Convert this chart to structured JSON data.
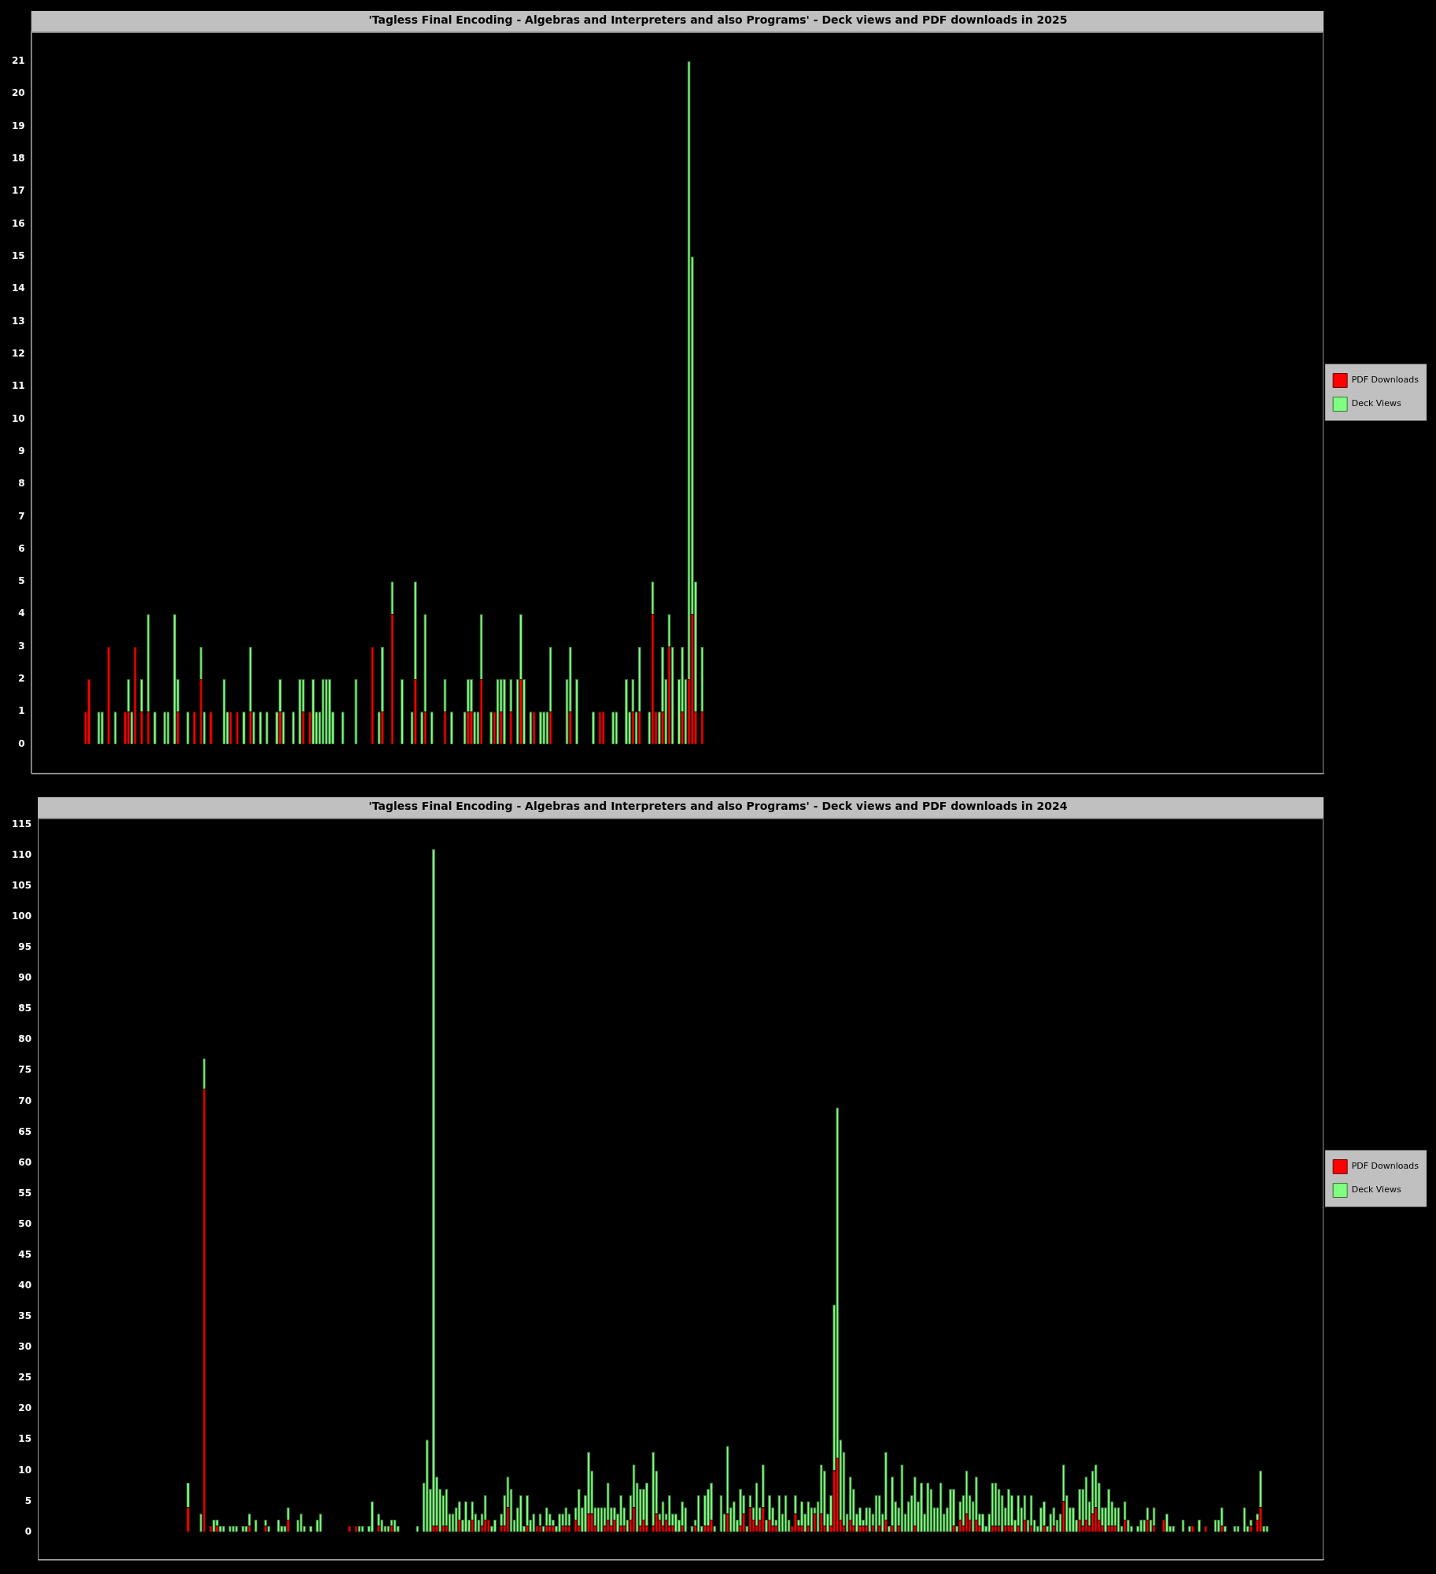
{
  "chart_data": [
    {
      "type": "bar",
      "title": "'Tagless Final Encoding - Algebras and Interpreters and also Programs' - Deck views and PDF downloads in 2025",
      "stacked": true,
      "legend": "right",
      "grid": false,
      "tick_labels": "y",
      "ylim": [
        -0.9,
        21.9
      ],
      "yticks": [
        0,
        1,
        2,
        3,
        4,
        5,
        6,
        7,
        8,
        9,
        10,
        11,
        12,
        13,
        14,
        15,
        16,
        17,
        18,
        19,
        20,
        21
      ],
      "categories": [
        null,
        null,
        null,
        null,
        null,
        null,
        null,
        null,
        null,
        null,
        null,
        null,
        null,
        null,
        null,
        null,
        null,
        null,
        null,
        null,
        null,
        null,
        null,
        null,
        null,
        null,
        null,
        null,
        null,
        null,
        null,
        null,
        null,
        null,
        null,
        null,
        null,
        null,
        null,
        null,
        null,
        null,
        null,
        null,
        null,
        null,
        null,
        null,
        null,
        null,
        null,
        null,
        null,
        null,
        null,
        null,
        null,
        null,
        null,
        null,
        null,
        null,
        null,
        null,
        null,
        null,
        null,
        null,
        null,
        null,
        null,
        null,
        null,
        null,
        null,
        null,
        null,
        null,
        null,
        null,
        null,
        null,
        null,
        null,
        null,
        null,
        null,
        null,
        null,
        null,
        null,
        null,
        null,
        null,
        null,
        null,
        null,
        null,
        null,
        null,
        null,
        null,
        null,
        null,
        null,
        null,
        null,
        null,
        null,
        null,
        null,
        null,
        null,
        null,
        null,
        null,
        null,
        null,
        null,
        null,
        null,
        null,
        null,
        null,
        null,
        null,
        null,
        null,
        null,
        null,
        null,
        null,
        null,
        null,
        null,
        null,
        null,
        null,
        null,
        null,
        null,
        null,
        null,
        null,
        null,
        null,
        null,
        null,
        null,
        null,
        null,
        null,
        null,
        null,
        null,
        null,
        null,
        null,
        null,
        null,
        null,
        null,
        null,
        null,
        null,
        null,
        null,
        null,
        null,
        null,
        null,
        null,
        null,
        null,
        null,
        null,
        null,
        null,
        null,
        null,
        null,
        null,
        null,
        null,
        null,
        null,
        null,
        null,
        null,
        null,
        null,
        null,
        null,
        null,
        null,
        null,
        null,
        null,
        null,
        null,
        null,
        null,
        null,
        null,
        null,
        null,
        null,
        null,
        null,
        null,
        null,
        null,
        null,
        null,
        null,
        null,
        null,
        null,
        null,
        null,
        null,
        null,
        null,
        null,
        null,
        null,
        null,
        null,
        null,
        null,
        null,
        null,
        null,
        null,
        null,
        null,
        null,
        null,
        null,
        null,
        null,
        null,
        null,
        null,
        null,
        null,
        null,
        null,
        null,
        null,
        null,
        null,
        null,
        null,
        null,
        null,
        null,
        null,
        null,
        null,
        null,
        null,
        null,
        null,
        null,
        null,
        null,
        null,
        null,
        null,
        null,
        null,
        null,
        null,
        null,
        null,
        null,
        null,
        null,
        null,
        null,
        null,
        null,
        null,
        null,
        null,
        null,
        null,
        null,
        null,
        null,
        null,
        null,
        null,
        null,
        null,
        null,
        null,
        null,
        null,
        null,
        null,
        null,
        null,
        null,
        null,
        null,
        null,
        null,
        null,
        null,
        null,
        null,
        null,
        null,
        null,
        null,
        null,
        null,
        null,
        null,
        null,
        null,
        null,
        null,
        null,
        null,
        null,
        null,
        null,
        null,
        null,
        null,
        null,
        null,
        null,
        null,
        null,
        null,
        null,
        null,
        null,
        null,
        null,
        null,
        null,
        null,
        null,
        null,
        null,
        null,
        null,
        null,
        null,
        null,
        null,
        null,
        null,
        null,
        null,
        null,
        null,
        null,
        null,
        null,
        null,
        null,
        null,
        null,
        null,
        null,
        null,
        null,
        null,
        null,
        null,
        null,
        null,
        null,
        null,
        null,
        null,
        null,
        null,
        null,
        null,
        null,
        null,
        null,
        null,
        null,
        null
      ],
      "series": [
        {
          "name": "PDF Downloads",
          "color": "#ff0000",
          "values": [
            null,
            null,
            null,
            null,
            null,
            null,
            null,
            null,
            null,
            null,
            null,
            null,
            null,
            null,
            null,
            null,
            1,
            2,
            null,
            null,
            null,
            null,
            null,
            3,
            null,
            null,
            null,
            null,
            1,
            1,
            null,
            3,
            null,
            1,
            null,
            1,
            null,
            null,
            null,
            null,
            null,
            null,
            null,
            null,
            1,
            null,
            null,
            null,
            null,
            1,
            null,
            2,
            null,
            null,
            1,
            null,
            null,
            null,
            null,
            null,
            1,
            null,
            1,
            null,
            null,
            null,
            1,
            null,
            null,
            null,
            null,
            null,
            null,
            null,
            null,
            1,
            null,
            null,
            null,
            null,
            null,
            null,
            1,
            null,
            1,
            null,
            null,
            null,
            null,
            null,
            null,
            null,
            null,
            null,
            null,
            null,
            null,
            null,
            null,
            null,
            null,
            null,
            null,
            3,
            null,
            null,
            1,
            null,
            null,
            4,
            null,
            null,
            null,
            null,
            null,
            null,
            2,
            null,
            null,
            1,
            null,
            null,
            null,
            null,
            null,
            1,
            null,
            null,
            null,
            null,
            null,
            null,
            1,
            1,
            null,
            null,
            2,
            null,
            null,
            null,
            1,
            null,
            1,
            null,
            null,
            1,
            null,
            null,
            2,
            null,
            null,
            null,
            1,
            null,
            null,
            null,
            null,
            1,
            null,
            null,
            null,
            null,
            null,
            1,
            null,
            null,
            null,
            null,
            null,
            null,
            null,
            null,
            1,
            1,
            null,
            null,
            null,
            null,
            null,
            null,
            null,
            null,
            1,
            null,
            1,
            null,
            null,
            null,
            4,
            1,
            null,
            1,
            null,
            3,
            null,
            null,
            null,
            1,
            null,
            2,
            4,
            1,
            null,
            1,
            null,
            null,
            null,
            null,
            null,
            null,
            null,
            null,
            null,
            null,
            null,
            null,
            null,
            null,
            null,
            null,
            null,
            null,
            null,
            null,
            null,
            null,
            null,
            null,
            null,
            null,
            null,
            null,
            null,
            null,
            null,
            null,
            null,
            null,
            null,
            null,
            null,
            null,
            null,
            null,
            null,
            null,
            null,
            null,
            null,
            null,
            null,
            null,
            null,
            null,
            null,
            null,
            null,
            null,
            null,
            null,
            null,
            null,
            null,
            null,
            null,
            null,
            null,
            null,
            null,
            null,
            null,
            null,
            null,
            null,
            null,
            null,
            null,
            null,
            null,
            null,
            null,
            null,
            null,
            null,
            null,
            null,
            null,
            null,
            null,
            null,
            null,
            null,
            null,
            null,
            null,
            null,
            null,
            null,
            null,
            null,
            null,
            null,
            null,
            null,
            null,
            null,
            null,
            null,
            null,
            null,
            null,
            null,
            null,
            null,
            null,
            null,
            null,
            null,
            null,
            null,
            null,
            null,
            null,
            null,
            null,
            null,
            null,
            null,
            null,
            null,
            null,
            null,
            null,
            null,
            null,
            null,
            null,
            null,
            null,
            null,
            null,
            null,
            null,
            null,
            null,
            null,
            null,
            null,
            null,
            null,
            null,
            null,
            null,
            null,
            null,
            null,
            null,
            null,
            null,
            null,
            null,
            null,
            null,
            null,
            null,
            null,
            null,
            null,
            null,
            null,
            null,
            null,
            null,
            null,
            null,
            null,
            null,
            null,
            null,
            null,
            null,
            null,
            null,
            null,
            null,
            null,
            null,
            null,
            null,
            null,
            null,
            null
          ]
        },
        {
          "name": "Deck Views",
          "color": "#80ff80",
          "values": [
            null,
            null,
            null,
            null,
            null,
            null,
            null,
            null,
            null,
            null,
            null,
            null,
            null,
            null,
            null,
            null,
            null,
            null,
            null,
            null,
            1,
            1,
            null,
            null,
            null,
            1,
            null,
            null,
            null,
            1,
            1,
            null,
            null,
            1,
            null,
            3,
            null,
            1,
            null,
            null,
            1,
            1,
            null,
            4,
            1,
            null,
            null,
            1,
            null,
            null,
            null,
            1,
            1,
            null,
            null,
            null,
            null,
            null,
            2,
            1,
            null,
            null,
            null,
            null,
            1,
            null,
            2,
            1,
            null,
            1,
            null,
            1,
            null,
            null,
            1,
            1,
            1,
            null,
            null,
            1,
            null,
            2,
            1,
            null,
            null,
            2,
            1,
            1,
            2,
            2,
            2,
            1,
            null,
            null,
            1,
            null,
            null,
            null,
            2,
            null,
            null,
            null,
            null,
            null,
            null,
            1,
            2,
            null,
            null,
            1,
            null,
            null,
            2,
            null,
            null,
            1,
            3,
            null,
            1,
            3,
            null,
            1,
            null,
            null,
            null,
            1,
            null,
            1,
            null,
            null,
            null,
            1,
            1,
            1,
            1,
            1,
            2,
            null,
            null,
            1,
            null,
            2,
            1,
            2,
            null,
            1,
            null,
            2,
            2,
            2,
            null,
            1,
            null,
            null,
            1,
            1,
            1,
            2,
            null,
            null,
            null,
            null,
            2,
            2,
            null,
            2,
            null,
            null,
            null,
            null,
            1,
            null,
            null,
            null,
            null,
            null,
            1,
            1,
            null,
            null,
            2,
            1,
            1,
            1,
            2,
            null,
            null,
            1,
            1,
            null,
            1,
            2,
            2,
            1,
            3,
            null,
            2,
            2,
            2,
            19,
            11,
            4,
            null,
            2,
            null,
            null,
            null,
            null,
            null,
            null,
            null,
            null,
            null,
            null,
            null,
            null,
            null,
            null,
            null,
            null,
            null,
            null,
            null,
            null,
            null,
            null,
            null,
            null,
            null,
            null,
            null,
            null,
            null,
            null,
            null,
            null,
            null,
            null,
            null,
            null,
            null,
            null,
            null,
            null,
            null,
            null,
            null,
            null,
            null,
            null,
            null,
            null,
            null,
            null,
            null,
            null,
            null,
            null,
            null,
            null,
            null,
            null,
            null,
            null,
            null,
            null,
            null,
            null,
            null,
            null,
            null,
            null,
            null,
            null,
            null,
            null,
            null,
            null,
            null,
            null,
            null,
            null,
            null,
            null,
            null,
            null,
            null,
            null,
            null,
            null,
            null,
            null,
            null,
            null,
            null,
            null,
            null,
            null,
            null,
            null,
            null,
            null,
            null,
            null,
            null,
            null,
            null,
            null,
            null,
            null,
            null,
            null,
            null,
            null,
            null,
            null,
            null,
            null,
            null,
            null,
            null,
            null,
            null,
            null,
            null,
            null,
            null,
            null,
            null,
            null,
            null,
            null,
            null,
            null,
            null,
            null,
            null,
            null,
            null,
            null,
            null,
            null,
            null,
            null,
            null,
            null,
            null,
            null,
            null,
            null,
            null,
            null,
            null,
            null,
            null,
            null,
            null,
            null,
            null,
            null,
            null,
            null,
            null,
            null,
            null,
            null,
            null,
            null,
            null,
            null,
            null,
            null,
            null,
            null,
            null,
            null,
            null,
            null,
            null,
            null,
            null,
            null,
            null,
            null,
            null,
            null,
            null,
            null,
            null,
            null,
            null,
            null
          ]
        }
      ]
    },
    {
      "type": "bar",
      "title": "'Tagless Final Encoding - Algebras and Interpreters and also Programs' - Deck views and PDF downloads in 2024",
      "stacked": true,
      "legend": "right",
      "grid": false,
      "tick_labels": "y",
      "ylim": [
        -4.5,
        116
      ],
      "yticks": [
        0,
        5,
        10,
        15,
        20,
        25,
        30,
        35,
        40,
        45,
        50,
        55,
        60,
        65,
        70,
        75,
        80,
        85,
        90,
        95,
        100,
        105,
        110,
        115
      ],
      "categories": [
        null,
        null,
        null,
        null,
        null,
        null,
        null,
        null,
        null,
        null,
        null,
        null,
        null,
        null,
        null,
        null,
        null,
        null,
        null,
        null,
        null,
        null,
        null,
        null,
        null,
        null,
        null,
        null,
        null,
        null,
        null,
        null,
        null,
        null,
        null,
        null,
        null,
        null,
        null,
        null,
        null,
        null,
        null,
        null,
        null,
        null,
        null,
        null,
        null,
        null,
        null,
        null,
        null,
        null,
        null,
        null,
        null,
        null,
        null,
        null,
        null,
        null,
        null,
        null,
        null,
        null,
        null,
        null,
        null,
        null,
        null,
        null,
        null,
        null,
        null,
        null,
        null,
        null,
        null,
        null,
        null,
        null,
        null,
        null,
        null,
        null,
        null,
        null,
        null,
        null,
        null,
        null,
        null,
        null,
        null,
        null,
        null,
        null,
        null,
        null,
        null,
        null,
        null,
        null,
        null,
        null,
        null,
        null,
        null,
        null,
        null,
        null,
        null,
        null,
        null,
        null,
        null,
        null,
        null,
        null,
        null,
        null,
        null,
        null,
        null,
        null,
        null,
        null,
        null,
        null,
        null,
        null,
        null,
        null,
        null,
        null,
        null,
        null,
        null,
        null,
        null,
        null,
        null,
        null,
        null,
        null,
        null,
        null,
        null,
        null,
        null,
        null,
        null,
        null,
        null,
        null,
        null,
        null,
        null,
        null,
        null,
        null,
        null,
        null,
        null,
        null,
        null,
        null,
        null,
        null,
        null,
        null,
        null,
        null,
        null,
        null,
        null,
        null,
        null,
        null,
        null,
        null,
        null,
        null,
        null,
        null,
        null,
        null,
        null,
        null,
        null,
        null,
        null,
        null,
        null,
        null,
        null,
        null,
        null,
        null,
        null,
        null,
        null,
        null,
        null,
        null,
        null,
        null,
        null,
        null,
        null,
        null,
        null,
        null,
        null,
        null,
        null,
        null,
        null,
        null,
        null,
        null,
        null,
        null,
        null,
        null,
        null,
        null,
        null,
        null,
        null,
        null,
        null,
        null,
        null,
        null,
        null,
        null,
        null,
        null,
        null,
        null,
        null,
        null,
        null,
        null,
        null,
        null,
        null,
        null,
        null,
        null,
        null,
        null,
        null,
        null,
        null,
        null,
        null,
        null,
        null,
        null,
        null,
        null,
        null,
        null,
        null,
        null,
        null,
        null,
        null,
        null,
        null,
        null,
        null,
        null,
        null,
        null,
        null,
        null,
        null,
        null,
        null,
        null,
        null,
        null,
        null,
        null,
        null,
        null,
        null,
        null,
        null,
        null,
        null,
        null,
        null,
        null,
        null,
        null,
        null,
        null,
        null,
        null,
        null,
        null,
        null,
        null,
        null,
        null,
        null,
        null,
        null,
        null,
        null,
        null,
        null,
        null,
        null,
        null,
        null,
        null,
        null,
        null,
        null,
        null,
        null,
        null,
        null,
        null,
        null,
        null,
        null,
        null,
        null,
        null,
        null,
        null,
        null,
        null,
        null,
        null,
        null,
        null,
        null,
        null,
        null,
        null,
        null,
        null,
        null,
        null,
        null,
        null,
        null,
        null,
        null,
        null,
        null,
        null,
        null,
        null,
        null,
        null,
        null,
        null,
        null,
        null,
        null,
        null,
        null,
        null,
        null,
        null,
        null,
        null,
        null,
        null,
        null,
        null,
        null,
        null,
        null,
        null,
        null,
        null,
        null,
        null,
        null,
        null,
        null,
        null,
        null,
        null,
        null,
        null,
        null,
        null
      ],
      "series": [
        {
          "name": "PDF Downloads",
          "color": "#ff0000",
          "values": [
            null,
            null,
            null,
            null,
            null,
            null,
            null,
            null,
            null,
            null,
            null,
            null,
            null,
            null,
            null,
            null,
            null,
            null,
            null,
            null,
            null,
            null,
            null,
            null,
            null,
            null,
            null,
            null,
            null,
            null,
            null,
            null,
            null,
            null,
            null,
            null,
            null,
            null,
            null,
            null,
            null,
            null,
            null,
            null,
            null,
            null,
            4,
            null,
            null,
            null,
            null,
            72,
            null,
            1,
            null,
            1,
            null,
            null,
            null,
            null,
            null,
            null,
            null,
            null,
            null,
            1,
            null,
            null,
            null,
            null,
            1,
            null,
            null,
            null,
            null,
            null,
            null,
            2,
            null,
            null,
            null,
            null,
            null,
            null,
            null,
            null,
            null,
            null,
            null,
            null,
            null,
            null,
            null,
            null,
            null,
            null,
            1,
            null,
            1,
            null,
            null,
            null,
            null,
            null,
            null,
            1,
            null,
            null,
            null,
            1,
            null,
            null,
            null,
            null,
            null,
            null,
            null,
            null,
            null,
            null,
            null,
            null,
            1,
            1,
            null,
            1,
            1,
            null,
            null,
            null,
            2,
            null,
            null,
            null,
            2,
            null,
            null,
            1,
            2,
            2,
            null,
            null,
            null,
            1,
            1,
            4,
            null,
            null,
            null,
            null,
            null,
            1,
            null,
            null,
            1,
            1,
            null,
            1,
            1,
            1,
            null,
            null,
            1,
            1,
            1,
            null,
            2,
            1,
            null,
            null,
            3,
            3,
            1,
            null,
            null,
            1,
            2,
            1,
            2,
            null,
            1,
            1,
            null,
            2,
            4,
            null,
            1,
            2,
            1,
            null,
            1,
            3,
            2,
            1,
            2,
            1,
            1,
            null,
            null,
            1,
            null,
            null,
            null,
            1,
            null,
            null,
            1,
            1,
            2,
            null,
            null,
            null,
            null,
            3,
            null,
            null,
            null,
            1,
            3,
            null,
            4,
            2,
            1,
            2,
            4,
            null,
            2,
            1,
            1,
            null,
            null,
            null,
            null,
            1,
            3,
            1,
            1,
            null,
            1,
            null,
            3,
            null,
            3,
            1,
            null,
            1,
            10,
            12,
            2,
            1,
            null,
            2,
            1,
            null,
            1,
            1,
            1,
            null,
            1,
            null,
            1,
            null,
            2,
            null,
            1,
            null,
            1,
            null,
            null,
            null,
            null,
            1,
            null,
            null,
            null,
            null,
            null,
            null,
            null,
            null,
            null,
            null,
            null,
            1,
            null,
            2,
            1,
            3,
            2,
            null,
            2,
            1,
            null,
            null,
            null,
            1,
            1,
            1,
            null,
            1,
            1,
            1,
            null,
            1,
            null,
            2,
            null,
            1,
            null,
            null,
            null,
            1,
            null,
            null,
            1,
            null,
            null,
            5,
            null,
            null,
            null,
            null,
            2,
            1,
            2,
            1,
            3,
            4,
            2,
            1,
            null,
            1,
            1,
            1,
            null,
            null,
            2,
            null,
            null,
            null,
            null,
            null,
            null,
            2,
            null,
            1,
            null,
            null,
            2,
            null,
            null,
            null,
            null,
            null,
            null,
            null,
            null,
            1,
            null,
            null,
            null,
            1,
            null,
            null,
            null,
            null,
            1,
            null,
            null,
            null,
            null,
            null,
            null,
            null,
            null,
            1,
            null,
            2,
            4,
            null,
            null,
            null,
            null,
            null,
            null,
            null,
            null,
            null,
            null,
            null,
            null,
            null,
            null,
            null,
            null,
            null,
            null,
            null
          ]
        },
        {
          "name": "Deck Views",
          "color": "#80ff80",
          "values": [
            null,
            null,
            null,
            null,
            null,
            null,
            null,
            null,
            null,
            null,
            null,
            null,
            null,
            null,
            null,
            null,
            null,
            null,
            null,
            null,
            null,
            null,
            null,
            null,
            null,
            null,
            null,
            null,
            null,
            null,
            null,
            null,
            null,
            null,
            null,
            null,
            null,
            null,
            null,
            null,
            null,
            null,
            null,
            null,
            null,
            null,
            4,
            null,
            null,
            null,
            3,
            5,
            null,
            null,
            2,
            1,
            1,
            1,
            null,
            1,
            1,
            1,
            null,
            1,
            1,
            2,
            null,
            2,
            null,
            null,
            1,
            1,
            null,
            null,
            2,
            1,
            1,
            2,
            null,
            null,
            2,
            3,
            1,
            null,
            1,
            null,
            2,
            3,
            null,
            null,
            null,
            null,
            null,
            null,
            null,
            null,
            null,
            null,
            null,
            1,
            1,
            null,
            1,
            5,
            null,
            2,
            2,
            1,
            1,
            1,
            2,
            1,
            null,
            null,
            null,
            null,
            null,
            1,
            null,
            8,
            15,
            7,
            110,
            8,
            7,
            5,
            6,
            3,
            3,
            4,
            3,
            2,
            5,
            2,
            3,
            3,
            2,
            2,
            4,
            null,
            1,
            2,
            null,
            2,
            5,
            5,
            7,
            2,
            4,
            6,
            1,
            5,
            2,
            3,
            null,
            2,
            1,
            3,
            2,
            1,
            1,
            3,
            2,
            3,
            2,
            null,
            2,
            6,
            4,
            6,
            10,
            7,
            3,
            4,
            4,
            3,
            6,
            3,
            2,
            3,
            5,
            3,
            2,
            4,
            7,
            8,
            6,
            5,
            7,
            null,
            12,
            7,
            1,
            4,
            1,
            5,
            2,
            3,
            2,
            4,
            4,
            null,
            1,
            1,
            6,
            1,
            5,
            6,
            6,
            1,
            null,
            6,
            3,
            11,
            4,
            5,
            2,
            6,
            3,
            1,
            2,
            2,
            7,
            2,
            7,
            2,
            4,
            3,
            1,
            6,
            3,
            6,
            2,
            null,
            3,
            1,
            4,
            3,
            4,
            4,
            1,
            5,
            8,
            9,
            3,
            5,
            27,
            57,
            13,
            12,
            3,
            7,
            6,
            3,
            3,
            1,
            3,
            4,
            2,
            6,
            5,
            3,
            11,
            1,
            8,
            5,
            3,
            11,
            3,
            5,
            6,
            8,
            5,
            8,
            3,
            8,
            7,
            4,
            4,
            8,
            3,
            4,
            7,
            6,
            1,
            3,
            5,
            7,
            4,
            5,
            7,
            2,
            3,
            1,
            3,
            7,
            7,
            6,
            6,
            3,
            6,
            5,
            2,
            5,
            4,
            4,
            2,
            5,
            2,
            1,
            4,
            4,
            1,
            3,
            3,
            2,
            3,
            6,
            6,
            4,
            4,
            2,
            5,
            6,
            7,
            4,
            7,
            7,
            6,
            3,
            4,
            6,
            4,
            3,
            4,
            1,
            3,
            2,
            1,
            null,
            1,
            2,
            2,
            2,
            2,
            3,
            null,
            null,
            null,
            3,
            1,
            1,
            null,
            null,
            2,
            null,
            1,
            null,
            null,
            2,
            null,
            null,
            null,
            null,
            2,
            2,
            3,
            1,
            null,
            null,
            1,
            1,
            null,
            4,
            1,
            1,
            null,
            1,
            6,
            1,
            1,
            null,
            null,
            null,
            null,
            null,
            null,
            null,
            null,
            null,
            null,
            null,
            null,
            null,
            null,
            null,
            null,
            null
          ]
        }
      ]
    }
  ]
}
